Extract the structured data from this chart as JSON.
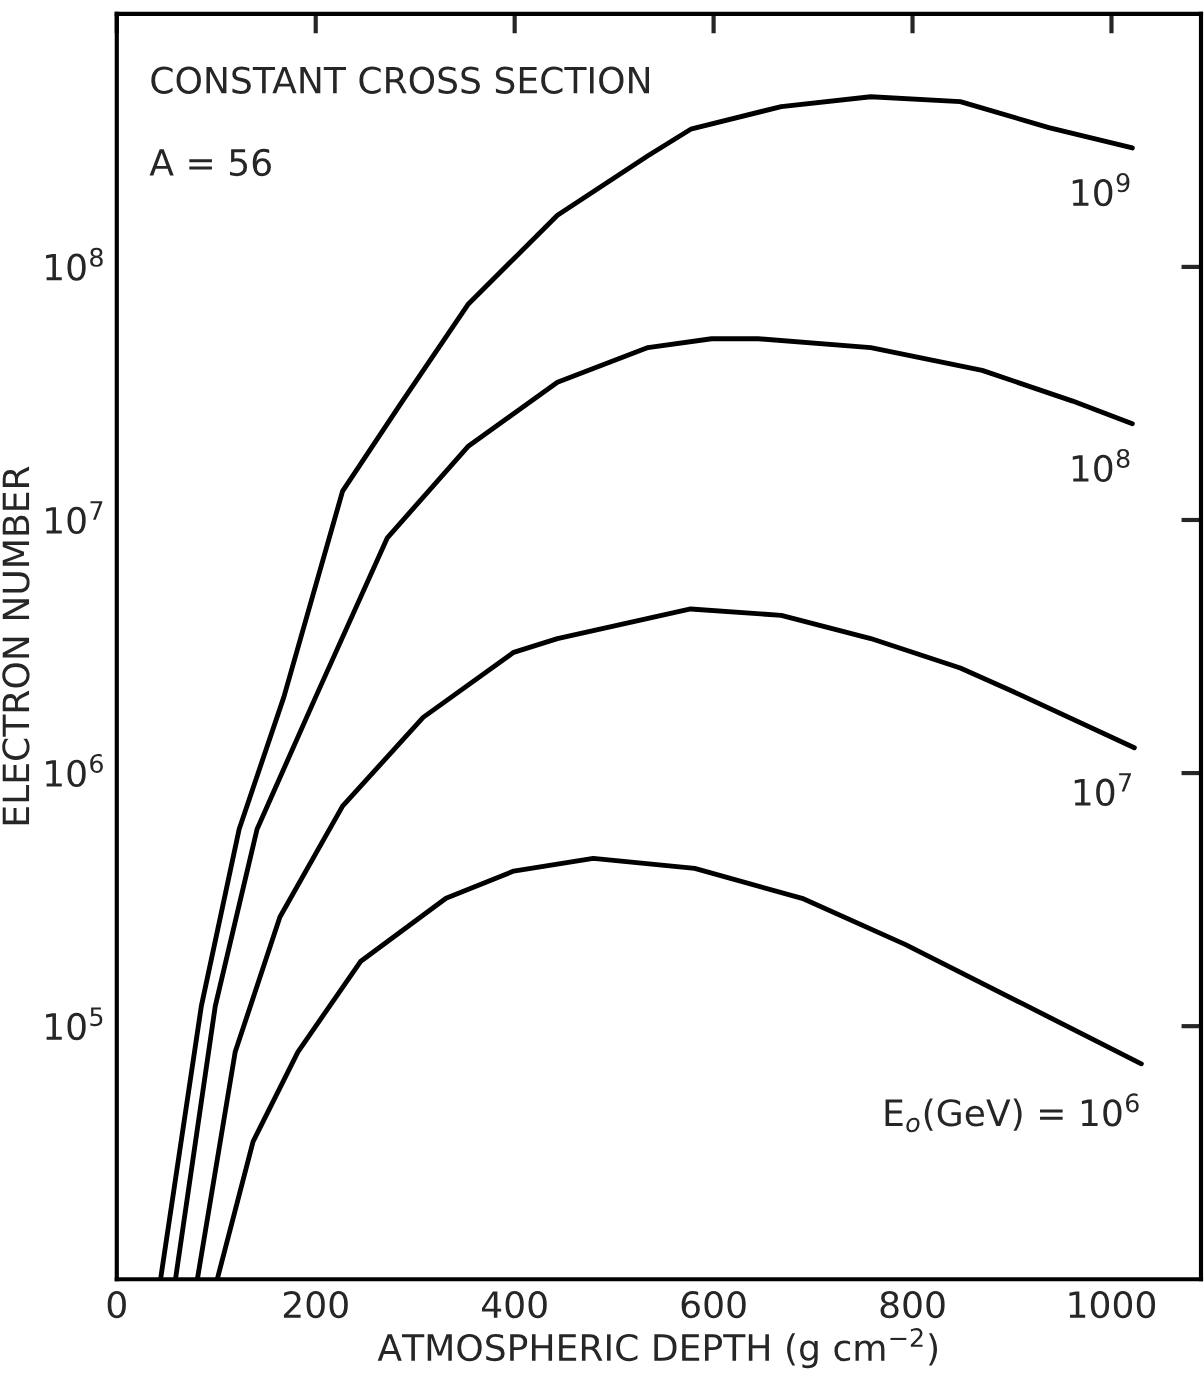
{
  "chart_data": {
    "type": "line",
    "xlabel": "ATMOSPHERIC DEPTH (g cm$^{−2}$)",
    "ylabel": "ELECTRON NUMBER",
    "annotations": [
      "CONSTANT CROSS SECTION",
      "A = 56"
    ],
    "xlim": [
      0,
      1090
    ],
    "xticks": [
      0,
      200,
      400,
      600,
      800,
      1000
    ],
    "ylim": [
      10000,
      1000000000
    ],
    "log": true,
    "yticks": [
      {
        "value": 100000,
        "label": "10$^{5}$"
      },
      {
        "value": 1000000,
        "label": "10$^{6}$"
      },
      {
        "value": 10000000,
        "label": "10$^{7}$"
      },
      {
        "value": 100000000,
        "label": "10$^{8}$"
      }
    ],
    "grid": false,
    "legend": false,
    "marker": "none",
    "line_style": "solid",
    "series": [
      {
        "name": "10$^{9}$",
        "color": "#000000",
        "x": [
          44,
          85,
          123,
          168,
          227,
          286,
          353,
          443,
          534,
          577,
          668,
          758,
          848,
          937,
          1021
        ],
        "values": [
          10000,
          120000,
          600000,
          2000000,
          13000000,
          29000000,
          71000000,
          160000000,
          275000000,
          350000000,
          430000000,
          470000000,
          450000000,
          355000000,
          295000000
        ]
      },
      {
        "name": "10$^{8}$",
        "color": "#000000",
        "x": [
          59,
          99,
          141,
          200,
          272,
          353,
          443,
          534,
          598,
          645,
          758,
          870,
          961,
          1021
        ],
        "values": [
          10000,
          120000,
          600000,
          2000000,
          8500000,
          19500000,
          35000000,
          48000000,
          52000000,
          52000000,
          48000000,
          39000000,
          29500000,
          24000000
        ]
      },
      {
        "name": "10$^{7}$",
        "color": "#000000",
        "x": [
          81,
          119,
          164,
          227,
          308,
          399,
          443,
          577,
          668,
          758,
          848,
          901,
          1023
        ],
        "values": [
          10000,
          79000,
          270000,
          740000,
          1660000,
          3000000,
          3400000,
          4450000,
          4200000,
          3400000,
          2600000,
          2100000,
          1260000
        ]
      },
      {
        "name": "E$_{o}$(GeV) = 10$^{6}$",
        "color": "#000000",
        "x": [
          101,
          137,
          182,
          245,
          331,
          399,
          479,
          581,
          689,
          793,
          910,
          1030
        ],
        "values": [
          10000,
          35000,
          79000,
          180000,
          320000,
          410000,
          460000,
          420000,
          320000,
          210000,
          123000,
          71000
        ]
      }
    ]
  }
}
